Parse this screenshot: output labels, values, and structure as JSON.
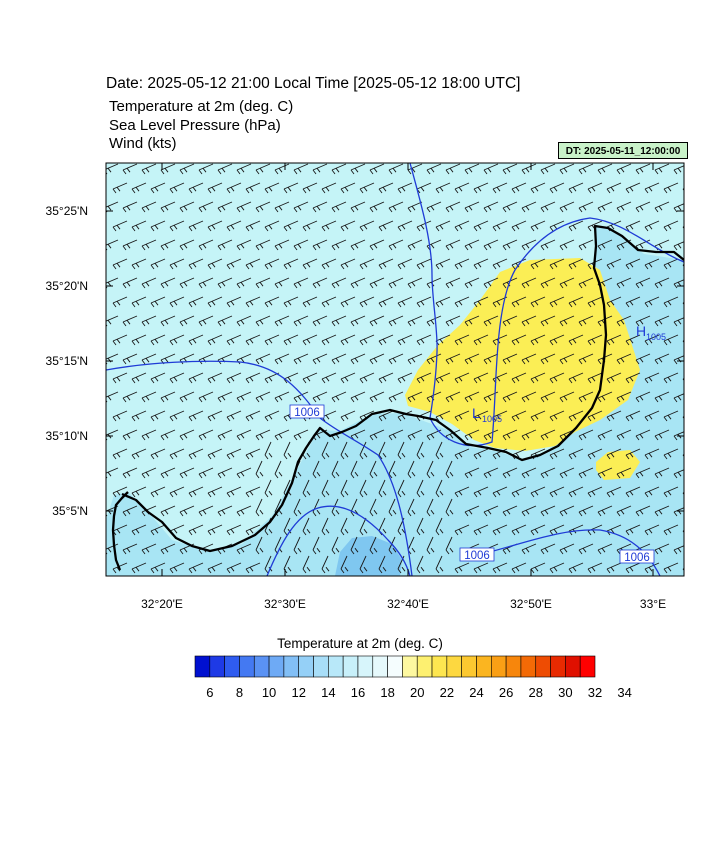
{
  "header": {
    "title": "Date: 2025-05-12  21:00 Local Time [2025-05-12  18:00 UTC]",
    "fields": [
      "Temperature at 2m   (deg. C)",
      "Sea Level Pressure   (hPa)",
      "Wind   (kts)"
    ],
    "dt_badge": "DT: 2025-05-11_12:00:00"
  },
  "map": {
    "lat_labels": [
      "35°25'N",
      "35°20'N",
      "35°15'N",
      "35°10'N",
      "35°5'N"
    ],
    "lon_labels": [
      "32°20'E",
      "32°30'E",
      "32°40'E",
      "32°50'E",
      "33°E"
    ],
    "contour_labels": [
      "1006",
      "1006",
      "1006"
    ],
    "pressure_centers": [
      {
        "letter": "L",
        "value": "1005"
      },
      {
        "letter": "H",
        "value": "1005"
      }
    ],
    "colors": {
      "land_cool": "#a8e5f4",
      "sea": "#c5f4f7",
      "warm_area": "#fbee55",
      "cold_core": "#7fc7f0",
      "isobar": "#1f3bd6",
      "coast": "#000000"
    }
  },
  "colorbar": {
    "title": "Temperature at 2m  (deg. C)",
    "tick_labels": [
      "6",
      "8",
      "10",
      "12",
      "14",
      "16",
      "18",
      "20",
      "22",
      "24",
      "26",
      "28",
      "30",
      "32",
      "34"
    ],
    "colors": [
      "#0010d0",
      "#1e3ae6",
      "#2f5cf0",
      "#4479f2",
      "#5a92f4",
      "#6eaaf5",
      "#82bff6",
      "#95d0f7",
      "#a8def8",
      "#b8e8f9",
      "#c8f0fa",
      "#d7f5fb",
      "#e6f9fc",
      "#f5fdfe",
      "#fdf8a0",
      "#fdf070",
      "#fde650",
      "#fdd840",
      "#fcc830",
      "#fbb520",
      "#fa9f15",
      "#f7860c",
      "#f36a06",
      "#ee4c03",
      "#e82a01",
      "#e01000",
      "#ff0000"
    ]
  }
}
